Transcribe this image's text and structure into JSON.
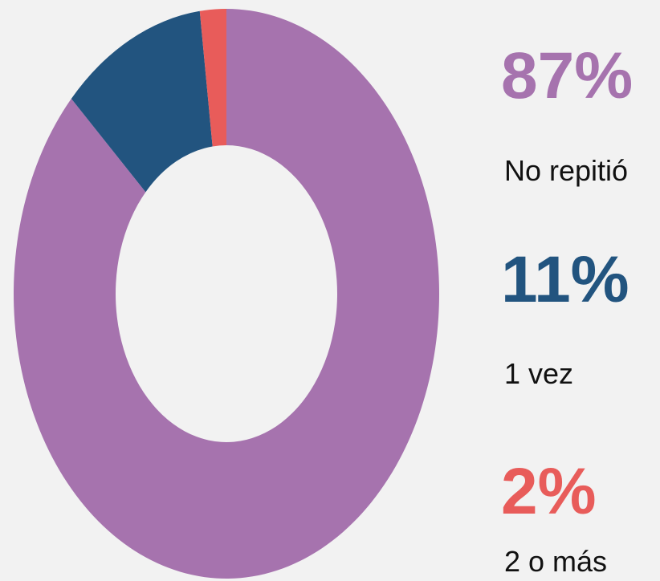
{
  "chart_data": {
    "type": "donut",
    "categories": [
      "No repitió",
      "1 vez",
      "2 o más"
    ],
    "values": [
      87,
      11,
      2
    ],
    "value_labels": [
      "87%",
      "11%",
      "2%"
    ],
    "colors": [
      "#a673ae",
      "#22547f",
      "#e85c5a"
    ]
  }
}
